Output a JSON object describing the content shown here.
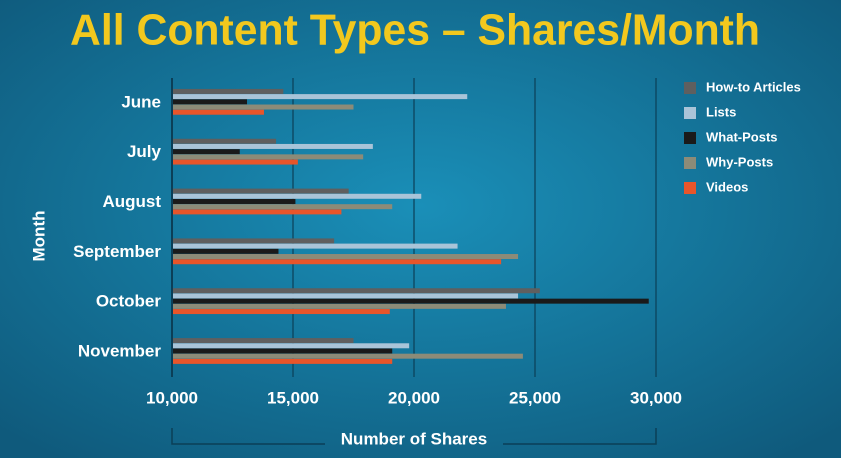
{
  "chart_data": {
    "type": "hbar",
    "title": "All Content Types – Shares/Month",
    "x_label": "Number of Shares",
    "y_label": "Month",
    "categories": [
      "June",
      "July",
      "August",
      "September",
      "October",
      "November"
    ],
    "series": [
      {
        "name": "How-to Articles",
        "color": "#5f5f5f",
        "values": [
          14600,
          14300,
          17300,
          16700,
          25200,
          17500
        ]
      },
      {
        "name": "Lists",
        "color": "#a9c4d8",
        "values": [
          22200,
          18300,
          20300,
          21800,
          24300,
          19800
        ]
      },
      {
        "name": "What-Posts",
        "color": "#1a1a1a",
        "values": [
          13100,
          12800,
          15100,
          14400,
          29700,
          19100
        ]
      },
      {
        "name": "Why-Posts",
        "color": "#8c8b78",
        "values": [
          17500,
          17900,
          19100,
          24300,
          23800,
          24500
        ]
      },
      {
        "name": "Videos",
        "color": "#e8552a",
        "values": [
          13800,
          15200,
          17000,
          23600,
          19000,
          19100
        ]
      }
    ],
    "xlim": [
      10000,
      30000
    ],
    "xticks": [
      {
        "value": 10000,
        "label": "10,000"
      },
      {
        "value": 15000,
        "label": "15,000"
      },
      {
        "value": 20000,
        "label": "20,000"
      },
      {
        "value": 25000,
        "label": "25,000"
      },
      {
        "value": 30000,
        "label": "30,000"
      }
    ],
    "grid": true,
    "legend": "right"
  }
}
